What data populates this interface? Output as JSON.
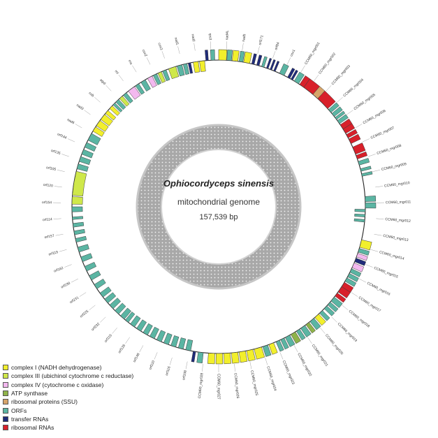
{
  "genome": {
    "organism": "Ophiocordyceps sinensis",
    "description": "mitochondrial genome",
    "length_label": "157,539 bp"
  },
  "colors": {
    "complex_I": "#f2ef2c",
    "complex_III": "#cfe84a",
    "complex_IV": "#f3b8ef",
    "atp": "#8fb34a",
    "ribo_protein": "#d6a46a",
    "orf": "#5bb5a3",
    "trna": "#1f2b7a",
    "rrna": "#d8202a"
  },
  "legend": [
    {
      "key": "complex_I",
      "label": "complex I (NADH dehydrogenase)"
    },
    {
      "key": "complex_III",
      "label": "complex III (ubichinol cytochrome c reductase)"
    },
    {
      "key": "complex_IV",
      "label": "complex IV (cytochrome c oxidase)"
    },
    {
      "key": "atp",
      "label": "ATP synthase"
    },
    {
      "key": "ribo_protein",
      "label": "ribosomal proteins (SSU)"
    },
    {
      "key": "orf",
      "label": "ORFs"
    },
    {
      "key": "trna",
      "label": "transfer RNAs"
    },
    {
      "key": "rrna",
      "label": "ribosomal RNAs"
    }
  ],
  "gene_labels": [
    "nad4L",
    "nad5",
    "orf171",
    "orf84",
    "cox1",
    "CCM60_mgr001",
    "CCM60_mgr002",
    "CCM60_mgr003",
    "CCM60_mgr004",
    "CCM60_mgr005",
    "CCM60_mgr006",
    "CCM60_mgr007",
    "CCM60_mgr008",
    "CCM60_mgr009",
    "CCM60_mgr010",
    "CCM60_mgr011",
    "CCM60_mgr012",
    "CCM60_mgr013",
    "CCM60_mgr014",
    "CCM60_mgr015",
    "CCM60_mgr016",
    "CCM60_mgr017",
    "CCM60_mgr018",
    "CCM60_mgr019",
    "CCM60_mgr020",
    "CCM60_mgr021",
    "CCM60_mgr022",
    "CCM60_mgr023",
    "CCM60_mgr024",
    "CCM60_mgr025",
    "CCM60_mgr026",
    "CCM60_mgr027",
    "CCM60_mgr028",
    "orf108",
    "orf116",
    "orf110",
    "orf148",
    "orf126",
    "orf115",
    "orf232",
    "orf225",
    "orf231",
    "orf230",
    "orf162",
    "orf119",
    "orf157",
    "orf114",
    "orf154",
    "orf120",
    "orf105",
    "orf135",
    "orf144",
    "nad6",
    "nad3",
    "cob",
    "atp6",
    "rnl",
    "rns",
    "cox2",
    "cox3",
    "nad1",
    "nad2",
    "rps3"
  ],
  "features": [
    {
      "s": 0.0,
      "e": 3.0,
      "t": "complex_I",
      "strand": 1
    },
    {
      "s": 3.2,
      "e": 5.0,
      "t": "orf",
      "strand": 1
    },
    {
      "s": 5.3,
      "e": 7.5,
      "t": "complex_I",
      "strand": 1
    },
    {
      "s": 8.0,
      "e": 9.5,
      "t": "orf",
      "strand": 1
    },
    {
      "s": 9.8,
      "e": 12.2,
      "t": "complex_I",
      "strand": 1
    },
    {
      "s": 13.0,
      "e": 14.0,
      "t": "trna",
      "strand": 1
    },
    {
      "s": 15.0,
      "e": 16.0,
      "t": "trna",
      "strand": 1
    },
    {
      "s": 17.0,
      "e": 18.0,
      "t": "orf",
      "strand": 1
    },
    {
      "s": 19.0,
      "e": 19.7,
      "t": "trna",
      "strand": 1
    },
    {
      "s": 20.5,
      "e": 21.2,
      "t": "trna",
      "strand": 1
    },
    {
      "s": 22.0,
      "e": 22.7,
      "t": "trna",
      "strand": 1
    },
    {
      "s": 24.5,
      "e": 26.5,
      "t": "orf",
      "strand": 1
    },
    {
      "s": 28.0,
      "e": 29.0,
      "t": "trna",
      "strand": 1
    },
    {
      "s": 29.5,
      "e": 30.3,
      "t": "trna",
      "strand": 1
    },
    {
      "s": 31.0,
      "e": 33.0,
      "t": "orf",
      "strand": 1
    },
    {
      "s": 33.5,
      "e": 35.5,
      "t": "rrna",
      "strand": 1
    },
    {
      "s": 35.5,
      "e": 40.0,
      "t": "rrna",
      "strand": 1
    },
    {
      "s": 40.0,
      "e": 42.5,
      "t": "ribo_protein",
      "strand": 1
    },
    {
      "s": 42.5,
      "e": 48.0,
      "t": "rrna",
      "strand": 1
    },
    {
      "s": 48.5,
      "e": 50.0,
      "t": "orf",
      "strand": 1
    },
    {
      "s": 50.5,
      "e": 52.0,
      "t": "orf",
      "strand": 1
    },
    {
      "s": 52.5,
      "e": 53.5,
      "t": "orf",
      "strand": 1
    },
    {
      "s": 54.0,
      "e": 55.5,
      "t": "orf",
      "strand": 1
    },
    {
      "s": 56.0,
      "e": 58.0,
      "t": "rrna",
      "strand": 1
    },
    {
      "s": 58.0,
      "e": 60.0,
      "t": "rrna",
      "strand": 1
    },
    {
      "s": 60.5,
      "e": 62.0,
      "t": "rrna",
      "strand": 1
    },
    {
      "s": 62.5,
      "e": 64.5,
      "t": "rrna",
      "strand": 1
    },
    {
      "s": 66.0,
      "e": 69.0,
      "t": "rrna",
      "strand": 1
    },
    {
      "s": 69.5,
      "e": 71.0,
      "t": "rrna",
      "strand": 1
    },
    {
      "s": 72.0,
      "e": 73.5,
      "t": "orf",
      "strand": 1
    },
    {
      "s": 75.0,
      "e": 76.0,
      "t": "orf",
      "strand": 1
    },
    {
      "s": 77.0,
      "e": 78.0,
      "t": "orf",
      "strand": 1
    },
    {
      "s": 86.0,
      "e": 88.0,
      "t": "orf",
      "strand": 1
    },
    {
      "s": 88.5,
      "e": 90.5,
      "t": "orf",
      "strand": 1
    },
    {
      "s": 91.0,
      "e": 92.0,
      "t": "orf",
      "strand": -1
    },
    {
      "s": 93.0,
      "e": 94.0,
      "t": "orf",
      "strand": -1
    },
    {
      "s": 95.0,
      "e": 96.0,
      "t": "orf",
      "strand": -1
    },
    {
      "s": 103.0,
      "e": 106.0,
      "t": "complex_I",
      "strand": 1
    },
    {
      "s": 106.5,
      "e": 108.0,
      "t": "orf",
      "strand": 1
    },
    {
      "s": 108.5,
      "e": 110.0,
      "t": "complex_IV",
      "strand": 1
    },
    {
      "s": 110.5,
      "e": 112.0,
      "t": "trna",
      "strand": 1
    },
    {
      "s": 112.5,
      "e": 114.5,
      "t": "complex_IV",
      "strand": 1
    },
    {
      "s": 115.0,
      "e": 116.5,
      "t": "orf",
      "strand": 1
    },
    {
      "s": 117.0,
      "e": 118.5,
      "t": "orf",
      "strand": 1
    },
    {
      "s": 119.0,
      "e": 120.5,
      "t": "orf",
      "strand": 1
    },
    {
      "s": 121.0,
      "e": 123.0,
      "t": "rrna",
      "strand": 1
    },
    {
      "s": 123.0,
      "e": 125.5,
      "t": "rrna",
      "strand": 1
    },
    {
      "s": 126.0,
      "e": 127.5,
      "t": "rrna",
      "strand": 1
    },
    {
      "s": 128.0,
      "e": 130.0,
      "t": "orf",
      "strand": 1
    },
    {
      "s": 130.5,
      "e": 132.0,
      "t": "orf",
      "strand": 1
    },
    {
      "s": 132.5,
      "e": 134.0,
      "t": "orf",
      "strand": 1
    },
    {
      "s": 135.0,
      "e": 136.5,
      "t": "orf",
      "strand": 1
    },
    {
      "s": 137.0,
      "e": 139.0,
      "t": "complex_I",
      "strand": 1
    },
    {
      "s": 139.5,
      "e": 141.5,
      "t": "orf",
      "strand": 1
    },
    {
      "s": 142.0,
      "e": 143.5,
      "t": "atp",
      "strand": 1
    },
    {
      "s": 144.0,
      "e": 146.0,
      "t": "orf",
      "strand": 1
    },
    {
      "s": 146.5,
      "e": 148.0,
      "t": "orf",
      "strand": 1
    },
    {
      "s": 148.5,
      "e": 150.5,
      "t": "atp",
      "strand": 1
    },
    {
      "s": 151.0,
      "e": 153.0,
      "t": "orf",
      "strand": 1
    },
    {
      "s": 153.5,
      "e": 155.0,
      "t": "orf",
      "strand": 1
    },
    {
      "s": 155.5,
      "e": 157.0,
      "t": "orf",
      "strand": 1
    },
    {
      "s": 158.0,
      "e": 160.0,
      "t": "complex_I",
      "strand": 1
    },
    {
      "s": 160.5,
      "e": 162.5,
      "t": "orf",
      "strand": 1
    },
    {
      "s": 163.0,
      "e": 166.0,
      "t": "complex_I",
      "strand": 1
    },
    {
      "s": 166.5,
      "e": 169.0,
      "t": "complex_I",
      "strand": 1
    },
    {
      "s": 169.5,
      "e": 172.0,
      "t": "complex_I",
      "strand": 1
    },
    {
      "s": 172.5,
      "e": 175.0,
      "t": "complex_I",
      "strand": 1
    },
    {
      "s": 175.5,
      "e": 178.0,
      "t": "complex_I",
      "strand": 1
    },
    {
      "s": 178.5,
      "e": 181.0,
      "t": "complex_I",
      "strand": 1
    },
    {
      "s": 181.5,
      "e": 184.0,
      "t": "complex_I",
      "strand": 1
    },
    {
      "s": 186.0,
      "e": 188.0,
      "t": "orf",
      "strand": 1
    },
    {
      "s": 189.0,
      "e": 190.0,
      "t": "trna",
      "strand": 1
    },
    {
      "s": 191.0,
      "e": 193.0,
      "t": "orf",
      "strand": -1
    },
    {
      "s": 194.0,
      "e": 196.0,
      "t": "orf",
      "strand": -1
    },
    {
      "s": 197.0,
      "e": 199.0,
      "t": "orf",
      "strand": -1
    },
    {
      "s": 200.0,
      "e": 202.0,
      "t": "orf",
      "strand": -1
    },
    {
      "s": 203.0,
      "e": 205.0,
      "t": "orf",
      "strand": -1
    },
    {
      "s": 206.0,
      "e": 208.0,
      "t": "orf",
      "strand": -1
    },
    {
      "s": 209.0,
      "e": 211.0,
      "t": "orf",
      "strand": -1
    },
    {
      "s": 212.0,
      "e": 214.0,
      "t": "orf",
      "strand": -1
    },
    {
      "s": 215.0,
      "e": 217.0,
      "t": "orf",
      "strand": -1
    },
    {
      "s": 218.0,
      "e": 219.5,
      "t": "orf",
      "strand": -1
    },
    {
      "s": 220.0,
      "e": 222.0,
      "t": "orf",
      "strand": -1
    },
    {
      "s": 223.0,
      "e": 225.0,
      "t": "orf",
      "strand": -1
    },
    {
      "s": 226.0,
      "e": 228.0,
      "t": "orf",
      "strand": -1
    },
    {
      "s": 229.0,
      "e": 231.0,
      "t": "orf",
      "strand": -1
    },
    {
      "s": 232.0,
      "e": 234.0,
      "t": "orf",
      "strand": -1
    },
    {
      "s": 236.0,
      "e": 238.0,
      "t": "orf",
      "strand": -1
    },
    {
      "s": 240.0,
      "e": 242.0,
      "t": "orf",
      "strand": -1
    },
    {
      "s": 244.0,
      "e": 246.0,
      "t": "orf",
      "strand": -1
    },
    {
      "s": 248.0,
      "e": 250.0,
      "t": "orf",
      "strand": -1
    },
    {
      "s": 252.0,
      "e": 254.0,
      "t": "orf",
      "strand": -1
    },
    {
      "s": 256.0,
      "e": 257.5,
      "t": "orf",
      "strand": -1
    },
    {
      "s": 259.0,
      "e": 260.5,
      "t": "orf",
      "strand": -1
    },
    {
      "s": 262.0,
      "e": 263.5,
      "t": "orf",
      "strand": -1
    },
    {
      "s": 265.0,
      "e": 266.0,
      "t": "orf",
      "strand": -1
    },
    {
      "s": 268.0,
      "e": 270.0,
      "t": "orf",
      "strand": -1
    },
    {
      "s": 271.0,
      "e": 274.0,
      "t": "complex_III",
      "strand": -1
    },
    {
      "s": 274.5,
      "e": 284.0,
      "t": "complex_III",
      "strand": -1
    },
    {
      "s": 285.0,
      "e": 287.0,
      "t": "orf",
      "strand": -1
    },
    {
      "s": 288.0,
      "e": 290.0,
      "t": "orf",
      "strand": -1
    },
    {
      "s": 291.0,
      "e": 293.0,
      "t": "orf",
      "strand": -1
    },
    {
      "s": 294.0,
      "e": 296.0,
      "t": "orf",
      "strand": -1
    },
    {
      "s": 297.0,
      "e": 300.0,
      "t": "orf",
      "strand": -1
    },
    {
      "s": 301.0,
      "e": 303.0,
      "t": "complex_I",
      "strand": -1
    },
    {
      "s": 303.5,
      "e": 306.0,
      "t": "complex_I",
      "strand": -1
    },
    {
      "s": 306.5,
      "e": 309.0,
      "t": "complex_I",
      "strand": -1
    },
    {
      "s": 309.5,
      "e": 311.0,
      "t": "complex_I",
      "strand": -1
    },
    {
      "s": 312.0,
      "e": 313.5,
      "t": "complex_I",
      "strand": -1
    },
    {
      "s": 314.0,
      "e": 315.0,
      "t": "orf",
      "strand": -1
    },
    {
      "s": 315.5,
      "e": 317.0,
      "t": "orf",
      "strand": -1
    },
    {
      "s": 317.5,
      "e": 319.0,
      "t": "complex_III",
      "strand": -1
    },
    {
      "s": 319.5,
      "e": 321.0,
      "t": "orf",
      "strand": -1
    },
    {
      "s": 322.0,
      "e": 325.0,
      "t": "complex_IV",
      "strand": -1
    },
    {
      "s": 325.5,
      "e": 327.0,
      "t": "orf",
      "strand": -1
    },
    {
      "s": 328.0,
      "e": 330.0,
      "t": "orf",
      "strand": -1
    },
    {
      "s": 331.0,
      "e": 333.0,
      "t": "complex_IV",
      "strand": -1
    },
    {
      "s": 333.5,
      "e": 335.0,
      "t": "orf",
      "strand": -1
    },
    {
      "s": 335.5,
      "e": 337.0,
      "t": "complex_III",
      "strand": -1
    },
    {
      "s": 337.5,
      "e": 339.0,
      "t": "orf",
      "strand": -1
    },
    {
      "s": 340.0,
      "e": 343.0,
      "t": "complex_III",
      "strand": -1
    },
    {
      "s": 343.5,
      "e": 345.5,
      "t": "orf",
      "strand": -1
    },
    {
      "s": 346.0,
      "e": 347.5,
      "t": "orf",
      "strand": -1
    },
    {
      "s": 348.0,
      "e": 349.0,
      "t": "trna",
      "strand": -1
    },
    {
      "s": 350.0,
      "e": 352.0,
      "t": "complex_I",
      "strand": -1
    },
    {
      "s": 352.5,
      "e": 354.5,
      "t": "complex_I",
      "strand": -1
    },
    {
      "s": 355.0,
      "e": 356.0,
      "t": "trna",
      "strand": 1
    },
    {
      "s": 357.0,
      "e": 358.5,
      "t": "orf",
      "strand": 1
    }
  ]
}
